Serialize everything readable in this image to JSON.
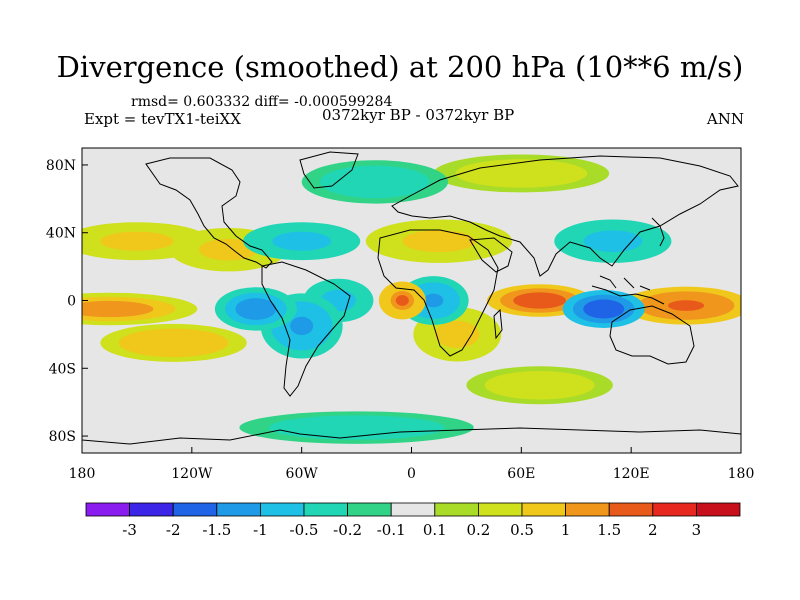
{
  "header": {
    "title": "Divergence (smoothed) at 200 hPa (10**6 m/s)",
    "stats": "rmsd= 0.603332 diff= -0.000599284",
    "expt": "Expt = tevTX1-teiXX",
    "period": "0372kyr BP - 0372kyr BP",
    "season": "ANN"
  },
  "axes": {
    "y_ticks": [
      {
        "label": "80N",
        "lat": 80
      },
      {
        "label": "40N",
        "lat": 40
      },
      {
        "label": "0",
        "lat": 0
      },
      {
        "label": "40S",
        "lat": -40
      },
      {
        "label": "80S",
        "lat": -80
      }
    ],
    "x_ticks": [
      {
        "label": "180",
        "lon": -180
      },
      {
        "label": "120W",
        "lon": -120
      },
      {
        "label": "60W",
        "lon": -60
      },
      {
        "label": "0",
        "lon": 0
      },
      {
        "label": "60E",
        "lon": 60
      },
      {
        "label": "120E",
        "lon": 120
      },
      {
        "label": "180",
        "lon": 180
      }
    ]
  },
  "colorbar": {
    "labels": [
      "-3",
      "-2",
      "-1.5",
      "-1",
      "-0.5",
      "-0.2",
      "-0.1",
      "0.1",
      "0.2",
      "0.5",
      "1",
      "1.5",
      "2",
      "3"
    ],
    "colors": [
      "#8a1cf0",
      "#3c25e6",
      "#1f64e6",
      "#1e9ae6",
      "#1ec0e6",
      "#20d6b4",
      "#31d487",
      "#e6e6e6",
      "#a8dc28",
      "#cfe01c",
      "#f0c81c",
      "#f0961c",
      "#e85a1a",
      "#e6281e",
      "#c8101c"
    ]
  },
  "chart_data": {
    "type": "heatmap",
    "title": "Divergence (smoothed) at 200 hPa (10**6 m/s)",
    "units": "10**6 m/s",
    "level": "200 hPa",
    "lon_range": [
      -180,
      180
    ],
    "lat_range": [
      -90,
      90
    ],
    "levels": [
      -3,
      -2,
      -1.5,
      -1,
      -0.5,
      -0.2,
      -0.1,
      0.1,
      0.2,
      0.5,
      1,
      1.5,
      2,
      3
    ],
    "features": [
      {
        "lon": -165,
        "lat": -5,
        "value": 1.8,
        "rlon": 30,
        "rlat": 6
      },
      {
        "lon": -130,
        "lat": -25,
        "value": 1.2,
        "rlon": 25,
        "rlat": 7
      },
      {
        "lon": -85,
        "lat": -5,
        "value": -1.6,
        "rlon": 14,
        "rlat": 8
      },
      {
        "lon": -60,
        "lat": -15,
        "value": -1.3,
        "rlon": 14,
        "rlat": 12
      },
      {
        "lon": -40,
        "lat": 0,
        "value": -1.0,
        "rlon": 12,
        "rlat": 8
      },
      {
        "lon": -5,
        "lat": 0,
        "value": 2.2,
        "rlon": 8,
        "rlat": 7
      },
      {
        "lon": 12,
        "lat": 0,
        "value": -1.5,
        "rlon": 12,
        "rlat": 9
      },
      {
        "lon": 25,
        "lat": -20,
        "value": 1.0,
        "rlon": 15,
        "rlat": 10
      },
      {
        "lon": 70,
        "lat": 0,
        "value": 2.4,
        "rlon": 18,
        "rlat": 6
      },
      {
        "lon": 105,
        "lat": -5,
        "value": -2.4,
        "rlon": 14,
        "rlat": 7
      },
      {
        "lon": 150,
        "lat": -3,
        "value": 2.3,
        "rlon": 22,
        "rlat": 7
      },
      {
        "lon": 15,
        "lat": 35,
        "value": 1.0,
        "rlon": 25,
        "rlat": 8
      },
      {
        "lon": 110,
        "lat": 35,
        "value": -1.1,
        "rlon": 20,
        "rlat": 8
      },
      {
        "lon": -100,
        "lat": 30,
        "value": 0.9,
        "rlon": 20,
        "rlat": 8
      },
      {
        "lon": -150,
        "lat": 35,
        "value": 0.8,
        "rlon": 25,
        "rlat": 7
      },
      {
        "lon": -60,
        "lat": 35,
        "value": -0.9,
        "rlon": 20,
        "rlat": 7
      },
      {
        "lon": -20,
        "lat": 70,
        "value": -0.6,
        "rlon": 25,
        "rlat": 8
      },
      {
        "lon": 60,
        "lat": 75,
        "value": 0.5,
        "rlon": 30,
        "rlat": 7
      },
      {
        "lon": -30,
        "lat": -75,
        "value": -0.5,
        "rlon": 40,
        "rlat": 6
      },
      {
        "lon": 70,
        "lat": -50,
        "value": 0.6,
        "rlon": 25,
        "rlat": 7
      }
    ]
  }
}
